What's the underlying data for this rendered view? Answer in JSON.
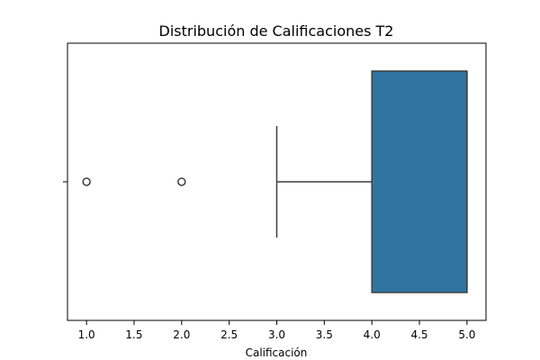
{
  "chart_data": {
    "type": "box",
    "orientation": "horizontal",
    "title": "Distribución de Calificaciones T2",
    "xlabel": "Calificación",
    "ylabel": "",
    "xlim": [
      0.8,
      5.2
    ],
    "xticks": [
      1.0,
      1.5,
      2.0,
      2.5,
      3.0,
      3.5,
      4.0,
      4.5,
      5.0
    ],
    "xtick_labels": [
      "1.0",
      "1.5",
      "2.0",
      "2.5",
      "3.0",
      "3.5",
      "4.0",
      "4.5",
      "5.0"
    ],
    "grid": false,
    "box": {
      "whisker_low": 3.0,
      "q1": 4.0,
      "median": 5.0,
      "q3": 5.0,
      "whisker_high": 5.0,
      "outliers": [
        1.0,
        2.0
      ],
      "color": "#3274a1",
      "line_color": "#3f3f3f"
    }
  }
}
